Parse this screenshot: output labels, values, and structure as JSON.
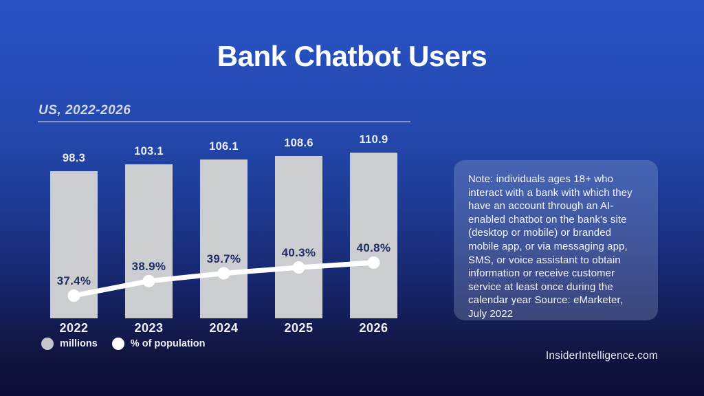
{
  "title": "Bank Chatbot Users",
  "subtitle": "US, 2022-2026",
  "footer": "InsiderIntelligence.com",
  "note_text": "Note: individuals ages 18+ who interact with a bank with which they have an account through an AI-enabled chatbot on the bank's site (desktop or mobile) or branded mobile app, or via messaging app, SMS, or voice assistant to obtain information or receive customer service at least once during the calendar year Source: eMarketer, July 2022",
  "legend": {
    "millions_label": "millions",
    "population_label": "% of population"
  },
  "colors": {
    "bar": "#cbcdd0",
    "line": "#ffffff",
    "pct_label_text": "#1d2e63",
    "background_top": "#2a52c4",
    "background_bottom": "#0c0e36"
  },
  "chart_data": {
    "type": "bar",
    "subtype": "bar-line-combo",
    "title": "Bank Chatbot Users",
    "subtitle": "US, 2022-2026",
    "categories": [
      "2022",
      "2023",
      "2024",
      "2025",
      "2026"
    ],
    "series": [
      {
        "name": "millions",
        "type": "bar",
        "values": [
          98.3,
          103.1,
          106.1,
          108.6,
          110.9
        ]
      },
      {
        "name": "% of population",
        "type": "line",
        "values": [
          37.4,
          38.9,
          39.7,
          40.3,
          40.8
        ]
      }
    ],
    "bar_labels": [
      "98.3",
      "103.1",
      "106.1",
      "108.6",
      "110.9"
    ],
    "pct_labels": [
      "37.4%",
      "38.9%",
      "39.7%",
      "40.3%",
      "40.8%"
    ],
    "xlabel": "",
    "ylabel": "",
    "grid": false,
    "legend_position": "bottom-left"
  }
}
